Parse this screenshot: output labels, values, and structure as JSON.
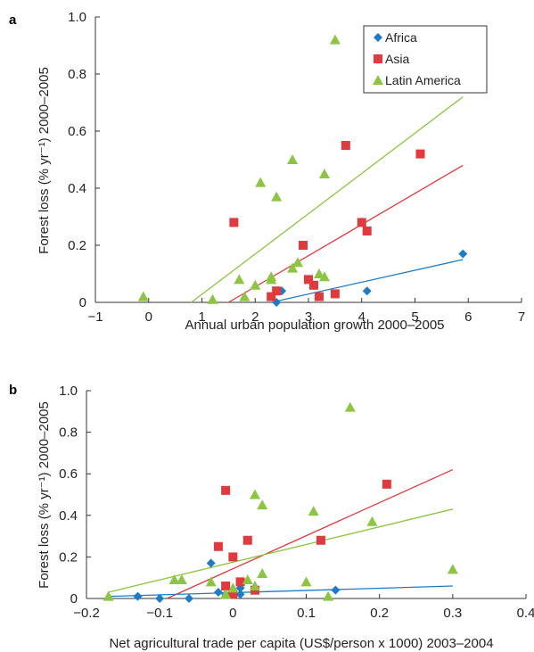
{
  "colors": {
    "africa": "#1f7bc4",
    "asia": "#e0393e",
    "latin_america": "#8cc541"
  },
  "legend": [
    {
      "key": "africa",
      "label": "Africa",
      "shape": "diamond"
    },
    {
      "key": "asia",
      "label": "Asia",
      "shape": "square"
    },
    {
      "key": "latin_america",
      "label": "Latin America",
      "shape": "triangle"
    }
  ],
  "chart_data": [
    {
      "panel": "a",
      "type": "scatter",
      "xlabel": "Annual urban population growth 2000–2005",
      "ylabel": "Forest loss (% yr⁻¹) 2000–2005",
      "xlim": [
        -1,
        7
      ],
      "ylim": [
        0,
        1.0
      ],
      "xticks": [
        "−1",
        "0",
        "1",
        "2",
        "3",
        "4",
        "5",
        "6",
        "7"
      ],
      "yticks": [
        "0",
        "0.2",
        "0.4",
        "0.6",
        "0.8",
        "1.0"
      ],
      "legend_position": "top-right",
      "series": [
        {
          "key": "africa",
          "name": "Africa",
          "points": [
            [
              2.4,
              0.0
            ],
            [
              2.5,
              0.04
            ],
            [
              4.1,
              0.04
            ],
            [
              5.9,
              0.17
            ]
          ],
          "fit": [
            [
              2.3,
              0.0
            ],
            [
              5.9,
              0.15
            ]
          ]
        },
        {
          "key": "asia",
          "name": "Asia",
          "points": [
            [
              1.6,
              0.28
            ],
            [
              2.3,
              0.02
            ],
            [
              2.4,
              0.04
            ],
            [
              2.9,
              0.2
            ],
            [
              3.0,
              0.08
            ],
            [
              3.1,
              0.06
            ],
            [
              3.2,
              0.02
            ],
            [
              3.5,
              0.03
            ],
            [
              3.7,
              0.55
            ],
            [
              4.0,
              0.28
            ],
            [
              4.1,
              0.25
            ],
            [
              5.1,
              0.52
            ]
          ],
          "fit": [
            [
              1.5,
              0.0
            ],
            [
              5.9,
              0.48
            ]
          ]
        },
        {
          "key": "latin_america",
          "name": "Latin America",
          "points": [
            [
              -0.1,
              0.02
            ],
            [
              1.2,
              0.01
            ],
            [
              1.7,
              0.08
            ],
            [
              1.8,
              0.02
            ],
            [
              2.0,
              0.06
            ],
            [
              2.1,
              0.42
            ],
            [
              2.3,
              0.09
            ],
            [
              2.3,
              0.08
            ],
            [
              2.4,
              0.37
            ],
            [
              2.7,
              0.5
            ],
            [
              2.7,
              0.12
            ],
            [
              2.8,
              0.14
            ],
            [
              3.2,
              0.1
            ],
            [
              3.3,
              0.09
            ],
            [
              3.3,
              0.45
            ],
            [
              3.5,
              0.92
            ]
          ],
          "fit": [
            [
              0.8,
              0.0
            ],
            [
              5.9,
              0.72
            ]
          ]
        }
      ]
    },
    {
      "panel": "b",
      "type": "scatter",
      "xlabel": "Net agricultural trade per capita (US$/person x 1000) 2003–2004",
      "ylabel": "Forest loss  (% yr⁻¹) 2000–2005",
      "xlim": [
        -0.2,
        0.4
      ],
      "ylim": [
        0,
        1.0
      ],
      "xticks": [
        "−0.2",
        "−0.1",
        "0",
        "0.1",
        "0.2",
        "0.3",
        "0.4"
      ],
      "yticks": [
        "0",
        "0.2",
        "0.4",
        "0.6",
        "0.8",
        "1.0"
      ],
      "series": [
        {
          "key": "africa",
          "name": "Africa",
          "points": [
            [
              -0.13,
              0.01
            ],
            [
              -0.1,
              0.0
            ],
            [
              -0.06,
              0.0
            ],
            [
              -0.03,
              0.17
            ],
            [
              -0.02,
              0.03
            ],
            [
              -0.01,
              0.02
            ],
            [
              0.0,
              0.02
            ],
            [
              0.01,
              0.02
            ],
            [
              0.01,
              0.05
            ],
            [
              0.14,
              0.04
            ]
          ],
          "fit": [
            [
              -0.17,
              0.01
            ],
            [
              0.3,
              0.06
            ]
          ]
        },
        {
          "key": "asia",
          "name": "Asia",
          "points": [
            [
              -0.02,
              0.25
            ],
            [
              -0.01,
              0.52
            ],
            [
              -0.01,
              0.06
            ],
            [
              0.0,
              0.2
            ],
            [
              0.0,
              0.02
            ],
            [
              0.01,
              0.08
            ],
            [
              0.02,
              0.28
            ],
            [
              0.03,
              0.04
            ],
            [
              0.12,
              0.28
            ],
            [
              0.21,
              0.55
            ]
          ],
          "fit": [
            [
              -0.09,
              0.0
            ],
            [
              0.3,
              0.62
            ]
          ]
        },
        {
          "key": "latin_america",
          "name": "Latin America",
          "points": [
            [
              -0.17,
              0.01
            ],
            [
              -0.08,
              0.09
            ],
            [
              -0.07,
              0.09
            ],
            [
              -0.03,
              0.08
            ],
            [
              -0.01,
              0.02
            ],
            [
              0.0,
              0.05
            ],
            [
              0.02,
              0.09
            ],
            [
              0.03,
              0.5
            ],
            [
              0.03,
              0.06
            ],
            [
              0.04,
              0.45
            ],
            [
              0.04,
              0.12
            ],
            [
              0.1,
              0.08
            ],
            [
              0.11,
              0.42
            ],
            [
              0.13,
              0.01
            ],
            [
              0.16,
              0.92
            ],
            [
              0.19,
              0.37
            ],
            [
              0.3,
              0.14
            ]
          ],
          "fit": [
            [
              -0.17,
              0.03
            ],
            [
              0.3,
              0.43
            ]
          ]
        }
      ]
    }
  ]
}
